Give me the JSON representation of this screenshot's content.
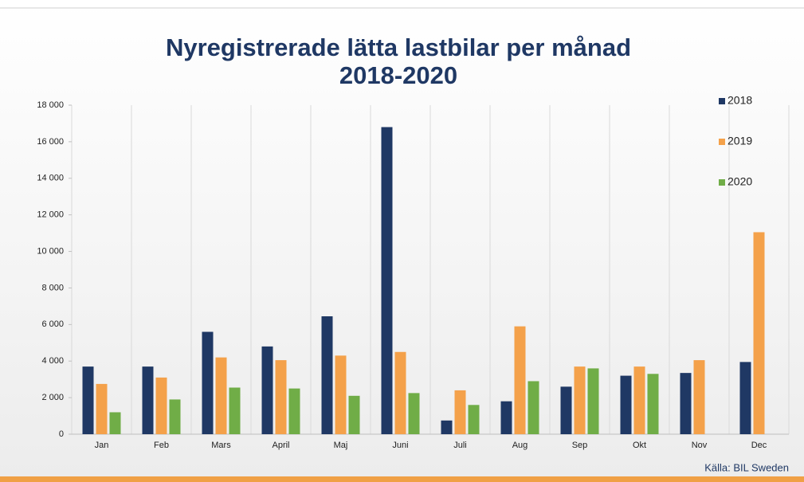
{
  "chart_data": {
    "type": "bar",
    "title": "Nyregistrerade lätta lastbilar per månad",
    "subtitle": "2018-2020",
    "source": "Källa: BIL Sweden",
    "categories": [
      "Jan",
      "Feb",
      "Mars",
      "April",
      "Maj",
      "Juni",
      "Juli",
      "Aug",
      "Sep",
      "Okt",
      "Nov",
      "Dec"
    ],
    "series": [
      {
        "name": "2018",
        "color": "#1f3864",
        "values": [
          3700,
          3700,
          5600,
          4800,
          6450,
          16800,
          750,
          1800,
          2600,
          3200,
          3350,
          3950
        ]
      },
      {
        "name": "2019",
        "color": "#f4a14a",
        "values": [
          2750,
          3100,
          4200,
          4050,
          4300,
          4500,
          2400,
          5900,
          3700,
          3700,
          4050,
          11050
        ]
      },
      {
        "name": "2020",
        "color": "#70ad47",
        "values": [
          1200,
          1900,
          2550,
          2500,
          2100,
          2250,
          1600,
          2900,
          3600,
          3300,
          null,
          null
        ]
      }
    ],
    "ylim": [
      0,
      18000
    ],
    "yticks": [
      0,
      {
        "value": 2000,
        "label": "2 000"
      },
      {
        "value": 4000,
        "label": "4 000"
      },
      {
        "value": 6000,
        "label": "6 000"
      },
      {
        "value": 8000,
        "label": "8 000"
      },
      {
        "value": 10000,
        "label": "10 000"
      },
      {
        "value": 12000,
        "label": "12 000"
      },
      {
        "value": 14000,
        "label": "14 000"
      },
      {
        "value": 16000,
        "label": "16 000"
      },
      {
        "value": 18000,
        "label": "18 000"
      }
    ],
    "legend": "right"
  }
}
